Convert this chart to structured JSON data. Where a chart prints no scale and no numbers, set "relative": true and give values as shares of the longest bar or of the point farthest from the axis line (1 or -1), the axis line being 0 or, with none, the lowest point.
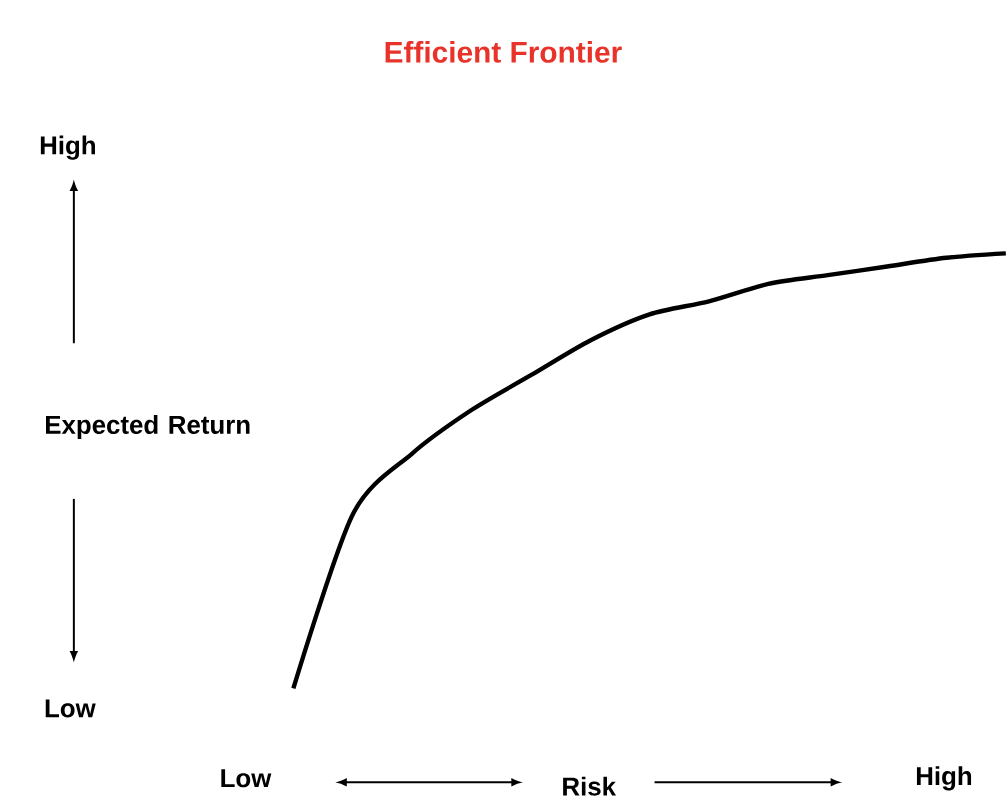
{
  "chart_data": {
    "type": "line",
    "relative": true,
    "title": "Efficient Frontier",
    "xlabel": "Risk",
    "ylabel": "Expected Return",
    "color": "#000000",
    "categories": [
      null,
      null,
      null,
      null,
      null,
      null,
      null,
      null,
      null,
      null,
      null,
      null,
      null
    ],
    "values": [
      0,
      0.4,
      0.54,
      0.64,
      0.72,
      0.8,
      0.86,
      0.89,
      0.93,
      0.95,
      0.97,
      0.99,
      1.0
    ],
    "annotations": [
      "High",
      "Low",
      "Low",
      "High"
    ]
  }
}
